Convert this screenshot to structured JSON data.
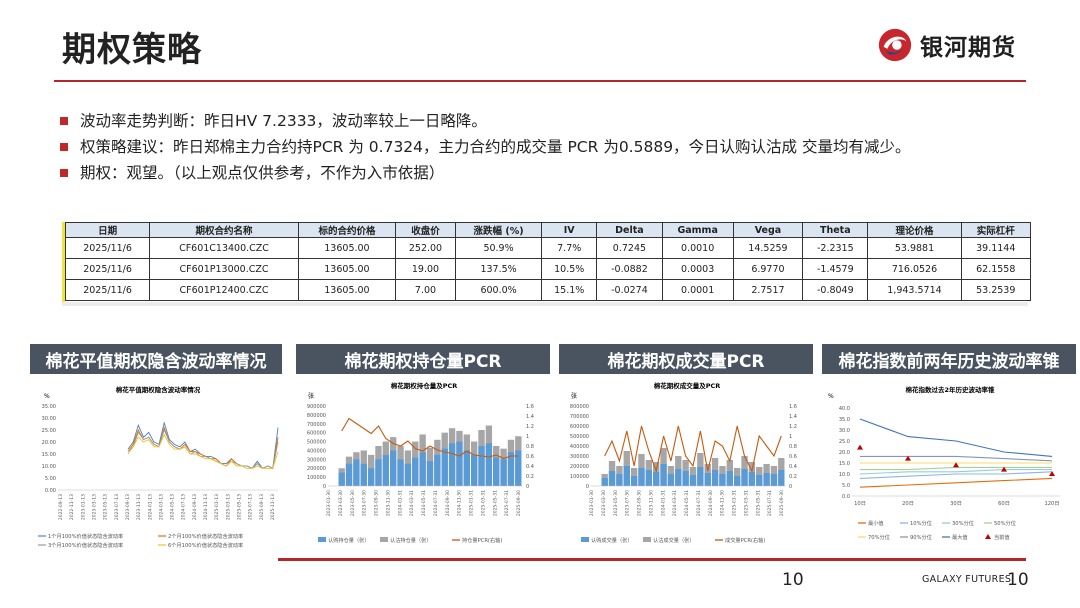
{
  "header": {
    "title": "期权策略",
    "logo_text": "银河期货"
  },
  "bullets": [
    "波动率走势判断：昨日HV 7.2333，波动率较上一日略降。",
    "权策略建议：昨日郑棉主力合约持PCR 为 0.7324，主力合约的成交量 PCR 为0.5889，今日认购认沽成 交量均有减少。",
    "期权：观望。（以上观点仅供参考，不作为入市依据）"
  ],
  "table": {
    "headers": [
      "日期",
      "期权合约名称",
      "标的合约价格",
      "收盘价",
      "涨跌幅 (%)",
      "IV",
      "Delta",
      "Gamma",
      "Vega",
      "Theta",
      "理论价格",
      "实际杠杆"
    ],
    "rows": [
      [
        "2025/11/6",
        "CF601C13400.CZC",
        "13605.00",
        "252.00",
        "50.9%",
        "7.7%",
        "0.7245",
        "0.0010",
        "14.5259",
        "-2.2315",
        "53.9881",
        "39.1144"
      ],
      [
        "2025/11/6",
        "CF601P13000.CZC",
        "13605.00",
        "19.00",
        "137.5%",
        "10.5%",
        "-0.0882",
        "0.0003",
        "6.9770",
        "-1.4579",
        "716.0526",
        "62.1558"
      ],
      [
        "2025/11/6",
        "CF601P12400.CZC",
        "13605.00",
        "7.00",
        "600.0%",
        "15.1%",
        "-0.0274",
        "0.0001",
        "2.7517",
        "-0.8049",
        "1,943.5714",
        "53.2539"
      ]
    ]
  },
  "panels": [
    {
      "title": "棉花平值期权隐含波动率情况"
    },
    {
      "title": "棉花期权持仓量PCR"
    },
    {
      "title": "棉花期权成交量PCR"
    },
    {
      "title": "棉花指数前两年历史波动率锥"
    }
  ],
  "chart_data": [
    {
      "type": "line",
      "title": "棉花平值期权隐含波动率情况",
      "ylabel": "%",
      "ylim": [
        0,
        35
      ],
      "yticks": [
        "35.00",
        "30.00",
        "25.00",
        "20.00",
        "15.00",
        "10.00",
        "5.00",
        "0.00"
      ],
      "xticks": [
        "2022-09-13",
        "2022-11-13",
        "2023-01-13",
        "2023-03-13",
        "2023-05-13",
        "2023-07-13",
        "2023-09-13",
        "2023-11-13",
        "2024-01-13",
        "2024-03-13",
        "2024-05-13",
        "2024-07-13",
        "2024-09-13",
        "2024-11-13",
        "2025-01-13",
        "2025-03-13",
        "2025-05-13",
        "2025-07-13",
        "2025-09-13",
        "2025-11-13"
      ],
      "series": [
        {
          "name": "1个月100%价值状态隐含波动率",
          "color": "#4f81bd",
          "values": [
            17,
            20,
            27,
            22,
            24,
            20,
            19,
            28,
            21,
            19,
            18,
            20,
            16,
            17,
            15,
            14,
            14,
            13,
            11,
            11,
            13,
            11,
            10,
            10,
            9,
            12,
            9,
            10,
            9,
            26
          ]
        },
        {
          "name": "2个月100%价值状态隐含波动率",
          "color": "#e36c0a",
          "values": [
            16,
            19,
            25,
            21,
            22,
            19,
            18,
            26,
            20,
            18,
            17,
            19,
            16,
            16,
            15,
            14,
            13,
            13,
            11,
            10,
            13,
            11,
            10,
            10,
            9,
            11,
            9,
            10,
            9,
            22
          ]
        },
        {
          "name": "3个月100%价值状态隐含波动率",
          "color": "#9b9b9b",
          "values": [
            16,
            18,
            24,
            21,
            22,
            19,
            18,
            25,
            20,
            18,
            17,
            18,
            15,
            16,
            14,
            14,
            13,
            12,
            11,
            10,
            12,
            11,
            10,
            10,
            9,
            11,
            9,
            10,
            9,
            20
          ]
        },
        {
          "name": "6个月100%价值状态隐含波动率",
          "color": "#f0c020",
          "values": [
            15,
            18,
            22,
            20,
            21,
            18,
            18,
            23,
            19,
            17,
            17,
            18,
            15,
            15,
            14,
            13,
            13,
            12,
            11,
            10,
            12,
            10,
            10,
            9,
            9,
            10,
            9,
            9,
            9,
            16
          ]
        }
      ]
    },
    {
      "type": "bar",
      "title": "棉花期权持仓量及PCR",
      "ylabel": "张",
      "ylim": [
        0,
        900000
      ],
      "y2lim": [
        0,
        1.6
      ],
      "yticks": [
        "900000",
        "800000",
        "700000",
        "600000",
        "500000",
        "400000",
        "300000",
        "200000",
        "100000",
        "0"
      ],
      "y2ticks": [
        "1.6",
        "1.4",
        "1.2",
        "1",
        "0.8",
        "0.6",
        "0.4",
        "0.2",
        "0"
      ],
      "xticks": [
        "2023-01-30",
        "2023-03-30",
        "2023-05-30",
        "2023-07-30",
        "2023-09-30",
        "2023-11-30",
        "2024-01-31",
        "2024-03-31",
        "2024-05-31",
        "2024-07-31",
        "2024-09-30",
        "2024-11-30",
        "2025-01-31",
        "2025-03-31",
        "2025-05-31",
        "2025-07-31",
        "2025-09-30"
      ],
      "series": [
        {
          "name": "认购持仓量（张）",
          "color": "#5b9bd5",
          "values": [
            150000,
            250000,
            300000,
            250000,
            200000,
            300000,
            350000,
            400000,
            300000,
            250000,
            320000,
            380000,
            280000,
            350000,
            420000,
            480000,
            500000,
            400000,
            350000,
            450000,
            480000,
            320000,
            300000,
            380000,
            400000
          ]
        },
        {
          "name": "认沽持仓量（张）",
          "color": "#a6a6a6",
          "values": [
            200000,
            330000,
            380000,
            400000,
            350000,
            450000,
            500000,
            550000,
            450000,
            400000,
            500000,
            580000,
            430000,
            520000,
            600000,
            650000,
            620000,
            580000,
            500000,
            630000,
            680000,
            450000,
            420000,
            520000,
            560000
          ]
        },
        {
          "name": "持仓量PCR(右轴)",
          "color": "#c55a11",
          "values": [
            1.1,
            1.35,
            1.25,
            1.15,
            1.05,
            1.2,
            0.95,
            0.85,
            0.8,
            0.9,
            0.75,
            0.7,
            0.8,
            0.72,
            0.68,
            0.65,
            0.6,
            0.7,
            0.62,
            0.6,
            0.58,
            0.62,
            0.55,
            0.6,
            0.6
          ]
        }
      ]
    },
    {
      "type": "bar",
      "title": "棉花期权成交量及PCR",
      "ylabel": "张",
      "ylim": [
        0,
        800000
      ],
      "y2lim": [
        0,
        1.6
      ],
      "yticks": [
        "800000",
        "700000",
        "600000",
        "500000",
        "400000",
        "300000",
        "200000",
        "100000",
        "0"
      ],
      "y2ticks": [
        "1.6",
        "1.4",
        "1.2",
        "1",
        "0.8",
        "0.6",
        "0.4",
        "0.2",
        "0"
      ],
      "xticks": [
        "2023-01-30",
        "2023-03-30",
        "2023-05-30",
        "2023-07-30",
        "2023-09-30",
        "2023-11-30",
        "2024-01-31",
        "2024-03-31",
        "2024-05-31",
        "2024-07-31",
        "2024-09-30",
        "2024-11-30",
        "2025-01-31",
        "2025-03-31",
        "2025-05-31",
        "2025-07-31",
        "2025-09-30"
      ],
      "series": [
        {
          "name": "认购成交量（张）",
          "color": "#5b9bd5",
          "values": [
            80000,
            150000,
            120000,
            200000,
            100000,
            180000,
            160000,
            140000,
            220000,
            120000,
            170000,
            150000,
            110000,
            190000,
            130000,
            160000,
            120000,
            150000,
            100000,
            170000,
            140000,
            110000,
            130000,
            120000,
            160000
          ]
        },
        {
          "name": "认沽成交量（张）",
          "color": "#a6a6a6",
          "values": [
            120000,
            250000,
            200000,
            350000,
            180000,
            320000,
            260000,
            240000,
            380000,
            200000,
            300000,
            260000,
            190000,
            330000,
            220000,
            280000,
            200000,
            260000,
            180000,
            300000,
            240000,
            190000,
            220000,
            200000,
            280000
          ]
        },
        {
          "name": "成交量PCR(右轴)",
          "color": "#c55a11",
          "values": [
            0.6,
            0.9,
            0.5,
            1.1,
            0.4,
            1.2,
            0.7,
            0.3,
            1.0,
            0.5,
            1.2,
            0.6,
            0.4,
            1.1,
            0.3,
            0.9,
            0.8,
            0.5,
            1.2,
            0.6,
            0.3,
            1.0,
            0.8,
            0.6,
            1.0
          ]
        }
      ]
    },
    {
      "type": "line",
      "title": "棉花指数过去2年历史波动率锥",
      "ylabel": "%",
      "ylim": [
        0,
        40
      ],
      "yticks": [
        "40.0",
        "35.0",
        "30.0",
        "25.0",
        "20.0",
        "15.0",
        "10.0",
        "5.0",
        "0.0"
      ],
      "categories": [
        "10日",
        "20日",
        "30日",
        "60日",
        "120日"
      ],
      "series": [
        {
          "name": "最小值",
          "color": "#e46c0a",
          "values": [
            4,
            5,
            6,
            7,
            8
          ]
        },
        {
          "name": "10%分位",
          "color": "#8db4e2",
          "values": [
            8,
            9,
            10,
            10,
            11
          ]
        },
        {
          "name": "30%分位",
          "color": "#93cddd",
          "values": [
            10,
            11,
            11,
            12,
            12
          ]
        },
        {
          "name": "50%分位",
          "color": "#a9d18e",
          "values": [
            12,
            12,
            13,
            13,
            13
          ]
        },
        {
          "name": "70%分位",
          "color": "#ffd966",
          "values": [
            15,
            15,
            15,
            15,
            15
          ]
        },
        {
          "name": "90%分位",
          "color": "#8497b0",
          "values": [
            18,
            18,
            18,
            17,
            16
          ]
        },
        {
          "name": "最大值",
          "color": "#4472c4",
          "values": [
            35,
            27,
            25,
            20,
            18
          ]
        },
        {
          "name": "当前值",
          "color": "#c00000",
          "values": [
            22,
            17,
            14,
            12,
            10
          ]
        }
      ]
    }
  ],
  "footer": {
    "page_number": "10",
    "brand": "GALAXY FUTURES",
    "page_number_right": "10"
  }
}
